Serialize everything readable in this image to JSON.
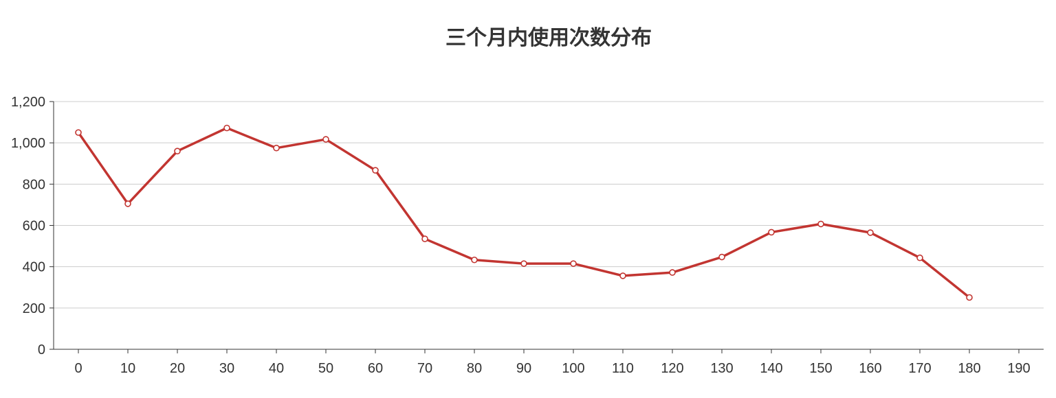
{
  "chart_data": {
    "type": "line",
    "title": "三个月内使用次数分布",
    "xlabel": "",
    "ylabel": "",
    "x": [
      0,
      10,
      20,
      30,
      40,
      50,
      60,
      70,
      80,
      90,
      100,
      110,
      120,
      130,
      140,
      150,
      160,
      170,
      180
    ],
    "x_ticks": [
      "0",
      "10",
      "20",
      "30",
      "40",
      "50",
      "60",
      "70",
      "80",
      "90",
      "100",
      "110",
      "120",
      "130",
      "140",
      "150",
      "160",
      "170",
      "180",
      "190"
    ],
    "y_ticks": [
      "0",
      "200",
      "400",
      "600",
      "800",
      "1,000",
      "1,200"
    ],
    "xlim": [
      -5,
      195
    ],
    "ylim": [
      0,
      1200
    ],
    "grid": true,
    "colors": {
      "line": "#c23531",
      "grid": "#cccccc",
      "axis": "#333333"
    },
    "series": [
      {
        "values": [
          1050,
          705,
          960,
          1072,
          975,
          1017,
          867,
          535,
          433,
          415,
          415,
          356,
          372,
          447,
          567,
          607,
          565,
          443,
          251
        ]
      }
    ]
  }
}
